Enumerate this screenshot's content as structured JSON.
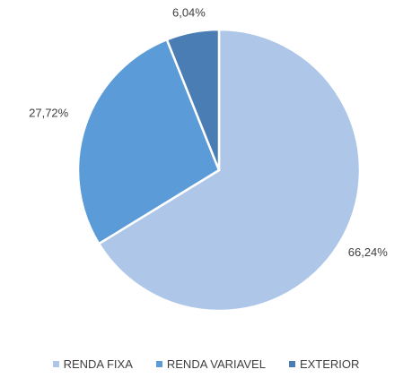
{
  "chart_data": {
    "type": "pie",
    "categories": [
      "RENDA FIXA",
      "RENDA VARIAVEL",
      "EXTERIOR"
    ],
    "values": [
      66.24,
      27.72,
      6.04
    ],
    "value_labels": [
      "66,24%",
      "27,72%",
      "6,04%"
    ],
    "colors": [
      "#aec7e8",
      "#5b9bd8",
      "#4a7db3"
    ],
    "legend": "bottom"
  }
}
